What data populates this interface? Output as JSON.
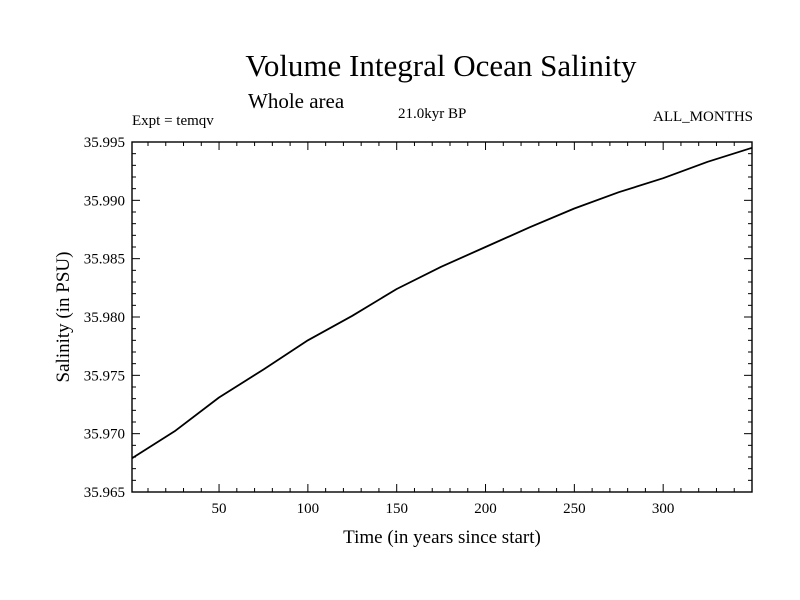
{
  "header": {
    "title": "Volume Integral Ocean Salinity",
    "subtitle": "Whole area",
    "left_label": "Expt = temqv",
    "center_label": "21.0kyr BP",
    "right_label": "ALL_MONTHS"
  },
  "chart_data": {
    "type": "line",
    "title": "Volume Integral Ocean Salinity",
    "subtitle": "Whole area",
    "xlabel": "Time (in years since start)",
    "ylabel": "Salinity (in PSU)",
    "xlim": [
      1,
      350
    ],
    "ylim": [
      35.965,
      35.995
    ],
    "x_ticks": [
      50,
      100,
      150,
      200,
      250,
      300
    ],
    "x_tick_labels": [
      "50",
      "100",
      "150",
      "200",
      "250",
      "300"
    ],
    "y_ticks": [
      35.965,
      35.97,
      35.975,
      35.98,
      35.985,
      35.99,
      35.995
    ],
    "y_tick_labels": [
      "35.965",
      "35.970",
      "35.975",
      "35.980",
      "35.985",
      "35.990",
      "35.995"
    ],
    "grid": false,
    "series": [
      {
        "name": "Salinity",
        "x": [
          1,
          25,
          50,
          75,
          100,
          125,
          150,
          175,
          200,
          225,
          250,
          275,
          300,
          325,
          350
        ],
        "y": [
          35.9679,
          35.9702,
          35.9731,
          35.9755,
          35.978,
          35.9801,
          35.9824,
          35.9843,
          35.986,
          35.9877,
          35.9893,
          35.9907,
          35.9919,
          35.9933,
          35.9945
        ]
      }
    ]
  }
}
